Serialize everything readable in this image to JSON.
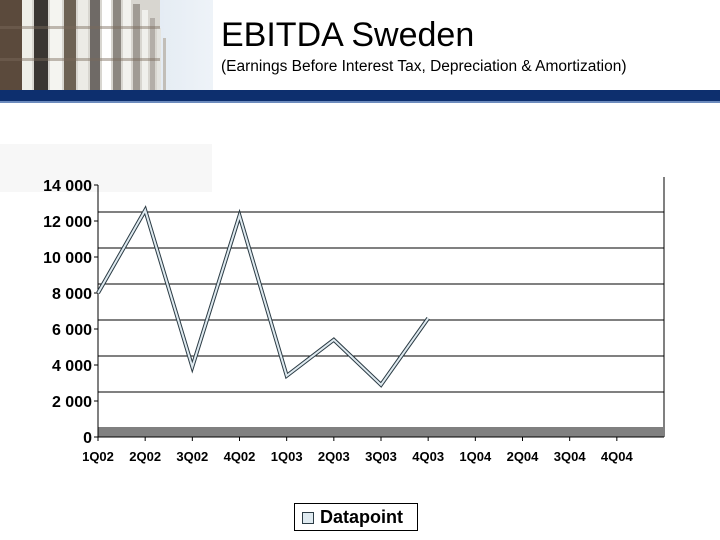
{
  "header": {
    "title": "EBITDA Sweden",
    "subtitle": "(Earnings Before Interest Tax, Depreciation & Amortization)"
  },
  "colors": {
    "brand_band": "#0d2f6e",
    "floor": "#808080",
    "line": "#2b3b44",
    "line_fill": "#dfeaf0"
  },
  "chart_data": {
    "type": "line",
    "categories": [
      "1Q02",
      "2Q02",
      "3Q02",
      "4Q02",
      "1Q03",
      "2Q03",
      "3Q03",
      "4Q03",
      "1Q04",
      "2Q04",
      "3Q04",
      "4Q04"
    ],
    "series": [
      {
        "name": "Datapoint",
        "values": [
          8000,
          12600,
          3900,
          12300,
          3400,
          5400,
          2900,
          6600,
          null,
          null,
          null,
          null
        ]
      }
    ],
    "ylim": [
      0,
      14000
    ],
    "yticks": [
      0,
      2000,
      4000,
      6000,
      8000,
      10000,
      12000,
      14000
    ],
    "ytick_labels": [
      "0",
      "2 000",
      "4 000",
      "6 000",
      "8 000",
      "10 000",
      "12 000",
      "14 000"
    ],
    "grid": true,
    "legend": "bottom"
  }
}
